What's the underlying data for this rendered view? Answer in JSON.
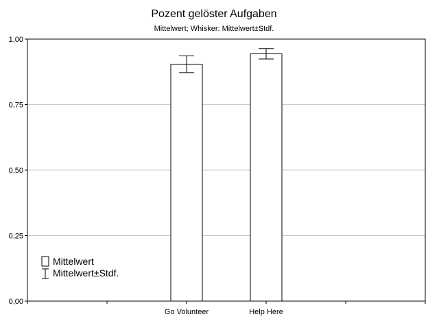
{
  "chart_data": {
    "type": "bar",
    "title": "Pozent gelöster Aufgaben",
    "subtitle": "Mittelwert; Whisker: Mittelwert±Stdf.",
    "xlabel": "",
    "ylabel": "",
    "x_positions": [
      0,
      1,
      2,
      3,
      4,
      5
    ],
    "categories": [
      "Go Volunteer",
      "Help Here"
    ],
    "category_positions": [
      2,
      3
    ],
    "values": [
      0.904,
      0.944
    ],
    "error_low": [
      0.872,
      0.924
    ],
    "error_high": [
      0.936,
      0.964
    ],
    "ylim": [
      0,
      1
    ],
    "yticks": [
      0,
      0.25,
      0.5,
      0.75,
      1.0
    ],
    "ytick_labels": [
      "0,00",
      "0,25",
      "0,50",
      "0,75",
      "1,00"
    ],
    "grid": true,
    "legend": {
      "placement": "bottom-left",
      "entries": [
        {
          "name": "Mittelwert",
          "symbol": "box"
        },
        {
          "name": "Mittelwert±Stdf.",
          "symbol": "whisker"
        }
      ]
    },
    "colors": {
      "bar_fill": "#ffffff",
      "bar_stroke": "#000000",
      "grid": "#c8c8c8"
    }
  }
}
